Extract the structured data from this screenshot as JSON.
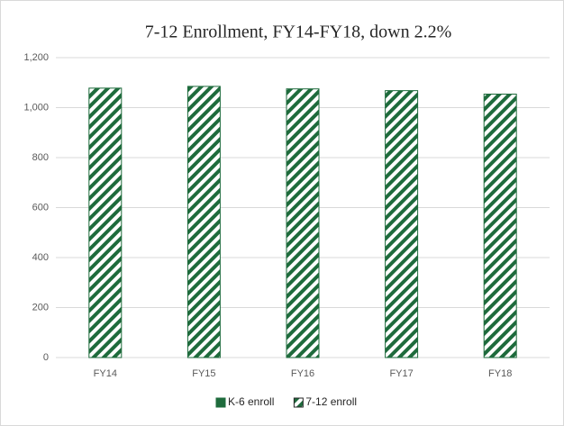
{
  "chart_data": {
    "type": "bar",
    "title": "7-12 Enrollment, FY14-FY18, down 2.2%",
    "categories": [
      "FY14",
      "FY15",
      "FY16",
      "FY17",
      "FY18"
    ],
    "series": [
      {
        "name": "K-6 enroll",
        "color": "#1e6b3c",
        "values": [
          null,
          null,
          null,
          null,
          null
        ]
      },
      {
        "name": "7-12 enroll",
        "color": "#1e6b3c",
        "pattern": "hatch",
        "values": [
          1078,
          1085,
          1075,
          1068,
          1054
        ]
      }
    ],
    "ylim": [
      0,
      1200
    ],
    "yticks": [
      0,
      200,
      400,
      600,
      800,
      {
        "value": 1000,
        "label": "1,000"
      },
      {
        "value": 1200,
        "label": "1,200"
      }
    ],
    "grid": true,
    "legend": "bottom"
  }
}
